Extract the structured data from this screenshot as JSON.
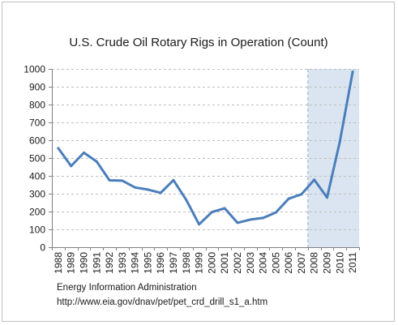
{
  "chart_data": {
    "type": "line",
    "title": "U.S. Crude Oil Rotary Rigs in Operation (Count)",
    "xlabel": "",
    "ylabel": "",
    "categories": [
      "1988",
      "1989",
      "1990",
      "1991",
      "1992",
      "1993",
      "1994",
      "1995",
      "1996",
      "1997",
      "1998",
      "1999",
      "2000",
      "2001",
      "2002",
      "2003",
      "2004",
      "2005",
      "2006",
      "2007",
      "2008",
      "2009",
      "2010",
      "2011"
    ],
    "series": [
      {
        "name": "",
        "values": [
          555,
          455,
          530,
          480,
          375,
          373,
          335,
          323,
          305,
          376,
          265,
          128,
          197,
          218,
          137,
          155,
          164,
          195,
          272,
          297,
          378,
          278,
          593,
          984
        ]
      }
    ],
    "ylim": [
      0,
      1000
    ],
    "yticks": [
      0,
      100,
      200,
      300,
      400,
      500,
      600,
      700,
      800,
      900,
      1000
    ],
    "grid": "horizontal-dashed",
    "highlight_range": [
      "2008",
      "2011"
    ],
    "colors": {
      "line": "#4a7ebb",
      "highlight": "#dbe5f1",
      "grid": "#bfbfbf",
      "axis": "#808080"
    }
  },
  "source": {
    "line1": "Energy Information  Administration",
    "line2": "http://www.eia.gov/dnav/pet/pet_crd_drill_s1_a.htm"
  }
}
